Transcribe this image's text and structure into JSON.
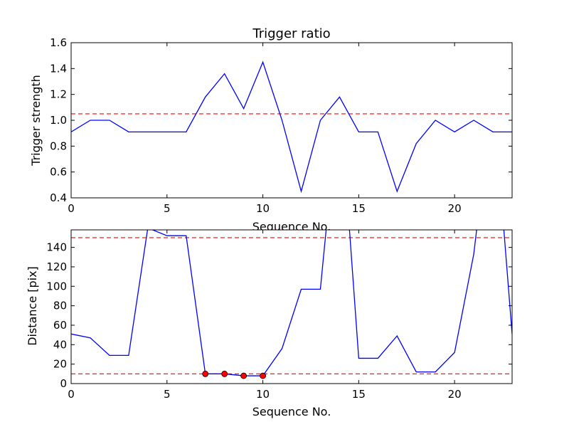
{
  "chart_data": [
    {
      "type": "line",
      "title": "Trigger ratio",
      "xlabel": "Sequence No.",
      "ylabel": "Trigger strength",
      "xlim": [
        0,
        23
      ],
      "ylim": [
        0.4,
        1.6
      ],
      "xticks": [
        0,
        5,
        10,
        15,
        20
      ],
      "xtick_labels": [
        "0",
        "5",
        "10",
        "15",
        "20"
      ],
      "yticks": [
        0.4,
        0.6,
        0.8,
        1.0,
        1.2,
        1.4,
        1.6
      ],
      "ytick_labels": [
        "0.4",
        "0.6",
        "0.8",
        "1.0",
        "1.2",
        "1.4",
        "1.6"
      ],
      "grid": false,
      "series": [
        {
          "color": "#0000ff",
          "style": "solid",
          "x": [
            0,
            1,
            2,
            3,
            4,
            5,
            6,
            7,
            8,
            9,
            10,
            11,
            12,
            13,
            14,
            15,
            16,
            17,
            18,
            19,
            20,
            21,
            22,
            23
          ],
          "y": [
            0.91,
            1.0,
            1.0,
            0.91,
            0.91,
            0.91,
            0.91,
            1.18,
            1.36,
            1.09,
            1.45,
            1.0,
            0.45,
            1.0,
            1.18,
            0.91,
            0.91,
            0.45,
            0.82,
            1.0,
            0.91,
            1.0,
            0.91,
            0.91
          ]
        }
      ],
      "hlines": [
        {
          "y": 1.05,
          "color": "#ff0000",
          "style": "dashed"
        }
      ]
    },
    {
      "type": "line",
      "title": "",
      "xlabel": "Sequence No.",
      "ylabel": "Distance [pix]",
      "xlim": [
        0,
        23
      ],
      "ylim": [
        0,
        158
      ],
      "xticks": [
        0,
        5,
        10,
        15,
        20
      ],
      "xtick_labels": [
        "0",
        "5",
        "10",
        "15",
        "20"
      ],
      "yticks": [
        0,
        20,
        40,
        60,
        80,
        100,
        120,
        140
      ],
      "ytick_labels": [
        "0",
        "20",
        "40",
        "60",
        "80",
        "100",
        "120",
        "140"
      ],
      "grid": false,
      "series": [
        {
          "color": "#0000ff",
          "style": "solid",
          "x": [
            0,
            1,
            2,
            3,
            4,
            5,
            6,
            7,
            8,
            9,
            10,
            11,
            12,
            13,
            14,
            15,
            16,
            17,
            18,
            19,
            20,
            21,
            22,
            23
          ],
          "y": [
            51,
            47,
            29,
            29,
            160,
            152,
            152,
            10,
            10,
            8,
            8,
            36,
            97,
            97,
            300,
            26,
            26,
            49,
            12,
            12,
            32,
            133,
            300,
            51
          ]
        },
        {
          "color": "#ff0000",
          "style": "markers",
          "x": [
            7,
            8,
            9,
            10
          ],
          "y": [
            10,
            10,
            8,
            8
          ]
        }
      ],
      "hlines": [
        {
          "y": 150,
          "color": "#ff0000",
          "style": "dashed"
        },
        {
          "y": 10,
          "color": "#ff0000",
          "style": "dashed"
        }
      ]
    }
  ]
}
